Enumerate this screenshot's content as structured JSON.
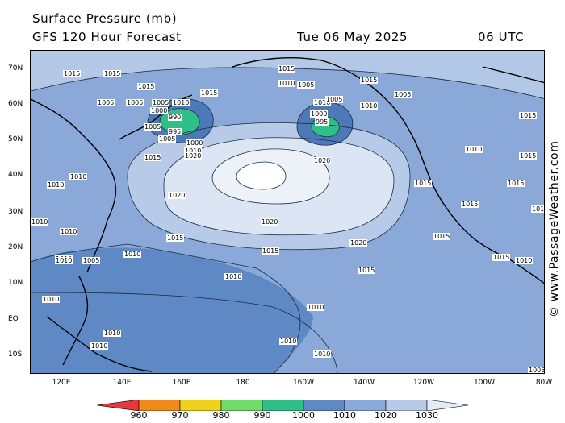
{
  "header": {
    "title": "Surface Pressure (mb)",
    "subtitle": "GFS 120 Hour Forecast",
    "date": "Tue 06 May 2025",
    "time": "06 UTC"
  },
  "credit": "© www.PassageWeather.com",
  "latitude_labels": [
    "70N",
    "60N",
    "50N",
    "40N",
    "30N",
    "20N",
    "10N",
    "EQ",
    "10S"
  ],
  "longitude_labels": [
    "120E",
    "140E",
    "160E",
    "180",
    "160W",
    "140W",
    "120W",
    "100W",
    "80W"
  ],
  "isobar_labels": [
    "1015",
    "1015",
    "1015",
    "1010",
    "1005",
    "1015",
    "1005",
    "1000",
    "1005",
    "990",
    "995",
    "1000",
    "1005",
    "1005",
    "1010",
    "1015",
    "1010",
    "1005",
    "995",
    "1000",
    "1005",
    "1010",
    "1015",
    "1020",
    "1020",
    "1015",
    "1010",
    "1005",
    "1020",
    "1020",
    "1015",
    "1020",
    "1015",
    "1010",
    "1015",
    "1005",
    "1010",
    "1010",
    "1015",
    "1010",
    "1015",
    "1015",
    "1015",
    "1010",
    "1010",
    "1010",
    "1010",
    "1010",
    "1010",
    "1010",
    "1015",
    "1015",
    "1010",
    "1010",
    "1010",
    "1015",
    "1015",
    "1010",
    "1010",
    "1005"
  ],
  "legend": {
    "colors": [
      "#e8383d",
      "#f08a1a",
      "#f0d21e",
      "#6fdc6a",
      "#2fc08a",
      "#5f89c4",
      "#8aa9d8",
      "#b7cbe8",
      "#e3ebf6"
    ],
    "labels": [
      "960",
      "970",
      "980",
      "990",
      "1000",
      "1010",
      "1020",
      "1030"
    ]
  }
}
